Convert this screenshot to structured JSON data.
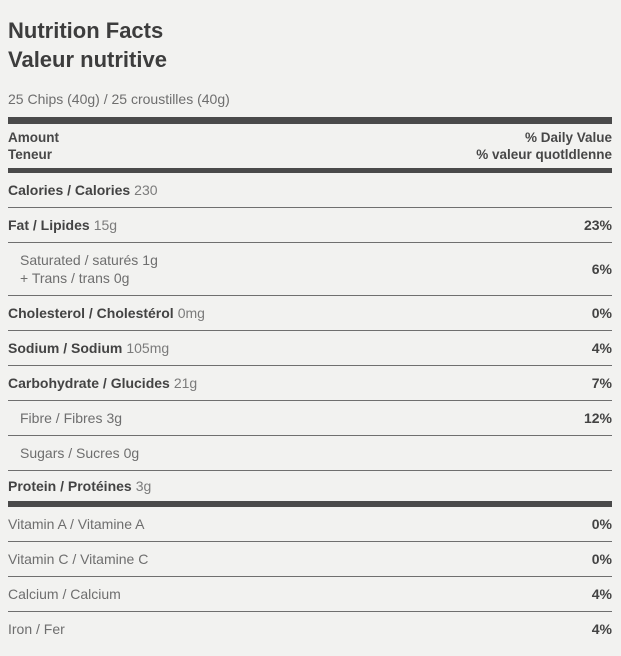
{
  "label": {
    "title_en": "Nutrition Facts",
    "title_fr": "Valeur nutritive",
    "serving": "25 Chips (40g) / 25 croustilles (40g)",
    "header": {
      "amount_en": "Amount",
      "amount_fr": "Teneur",
      "daily_value_en": "% Daily Value",
      "daily_value_fr": "% valeur quotldlenne"
    },
    "calories": {
      "name": "Calories / Calories",
      "amount": "230"
    },
    "nutrients": [
      {
        "name": "Fat / Lipides",
        "amount": "15g",
        "percent": "23%"
      },
      {
        "name": "Saturated / saturés",
        "amount": "1g",
        "name2": "+ Trans / trans",
        "amount2": "0g",
        "percent": "6%"
      },
      {
        "name": "Cholesterol / Cholestérol",
        "amount": "0mg",
        "percent": "0%"
      },
      {
        "name": "Sodium / Sodium",
        "amount": "105mg",
        "percent": "4%"
      },
      {
        "name": "Carbohydrate / Glucides",
        "amount": "21g",
        "percent": "7%"
      },
      {
        "name": "Fibre / Fibres",
        "amount": "3g",
        "percent": "12%"
      },
      {
        "name": "Sugars / Sucres",
        "amount": "0g",
        "percent": ""
      },
      {
        "name": "Protein / Protéines",
        "amount": "3g",
        "percent": ""
      },
      {
        "name": "Vitamin A / Vitamine A",
        "percent": "0%"
      },
      {
        "name": "Vitamin C / Vitamine C",
        "percent": "0%"
      },
      {
        "name": "Calcium / Calcium",
        "percent": "4%"
      },
      {
        "name": "Iron / Fer",
        "percent": "4%"
      }
    ]
  }
}
